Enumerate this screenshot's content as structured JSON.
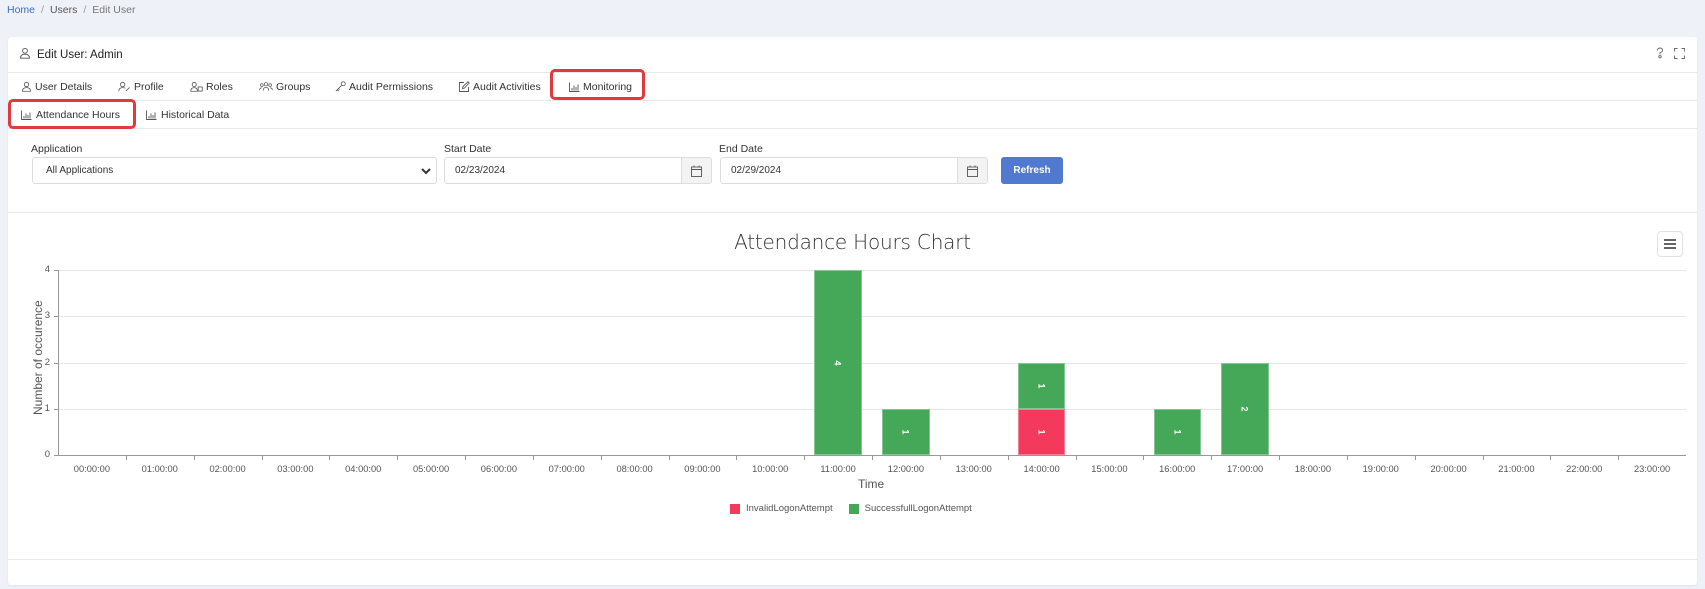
{
  "breadcrumb": {
    "items": [
      "Home",
      "Users",
      "Edit User"
    ],
    "separator": "/"
  },
  "header": {
    "title": "Edit User: Admin",
    "icons": [
      "user-icon",
      "help-icon",
      "fullscreen-icon"
    ]
  },
  "tabs": [
    {
      "label": "User Details",
      "icon": "user-icon"
    },
    {
      "label": "Profile",
      "icon": "user-edit-icon"
    },
    {
      "label": "Roles",
      "icon": "roles-icon"
    },
    {
      "label": "Groups",
      "icon": "groups-icon"
    },
    {
      "label": "Audit Permissions",
      "icon": "key-icon"
    },
    {
      "label": "Audit Activities",
      "icon": "edit-icon"
    },
    {
      "label": "Monitoring",
      "icon": "chart-icon",
      "active": true
    }
  ],
  "subtabs": [
    {
      "label": "Attendance Hours",
      "icon": "chart-icon",
      "active": true
    },
    {
      "label": "Historical Data",
      "icon": "chart-icon"
    }
  ],
  "filters": {
    "application": {
      "label": "Application",
      "value": "All Applications"
    },
    "start_date": {
      "label": "Start Date",
      "value": "02/23/2024"
    },
    "end_date": {
      "label": "End Date",
      "value": "02/29/2024"
    },
    "refresh_label": "Refresh"
  },
  "colors": {
    "invalid": "#f43a5c",
    "successful": "#44a858",
    "accent": "#5279d0",
    "highlight": "#e0393e"
  },
  "chart_data": {
    "type": "bar",
    "stacked": true,
    "title": "Attendance Hours Chart",
    "xlabel": "Time",
    "ylabel": "Number of occurence",
    "ylim": [
      0,
      4
    ],
    "yticks": [
      0,
      1,
      2,
      3,
      4
    ],
    "grid": true,
    "legend_position": "bottom",
    "categories": [
      "00:00:00",
      "01:00:00",
      "02:00:00",
      "03:00:00",
      "04:00:00",
      "05:00:00",
      "06:00:00",
      "07:00:00",
      "08:00:00",
      "09:00:00",
      "10:00:00",
      "11:00:00",
      "12:00:00",
      "13:00:00",
      "14:00:00",
      "15:00:00",
      "16:00:00",
      "17:00:00",
      "18:00:00",
      "19:00:00",
      "20:00:00",
      "21:00:00",
      "22:00:00",
      "23:00:00"
    ],
    "series": [
      {
        "name": "InvalidLogonAttempt",
        "color": "#f43a5c",
        "values": [
          0,
          0,
          0,
          0,
          0,
          0,
          0,
          0,
          0,
          0,
          0,
          0,
          0,
          0,
          1,
          0,
          0,
          0,
          0,
          0,
          0,
          0,
          0,
          0
        ]
      },
      {
        "name": "SuccessfullLogonAttempt",
        "color": "#44a858",
        "values": [
          0,
          0,
          0,
          0,
          0,
          0,
          0,
          0,
          0,
          0,
          0,
          4,
          1,
          0,
          1,
          0,
          1,
          2,
          0,
          0,
          0,
          0,
          0,
          0
        ]
      }
    ]
  }
}
